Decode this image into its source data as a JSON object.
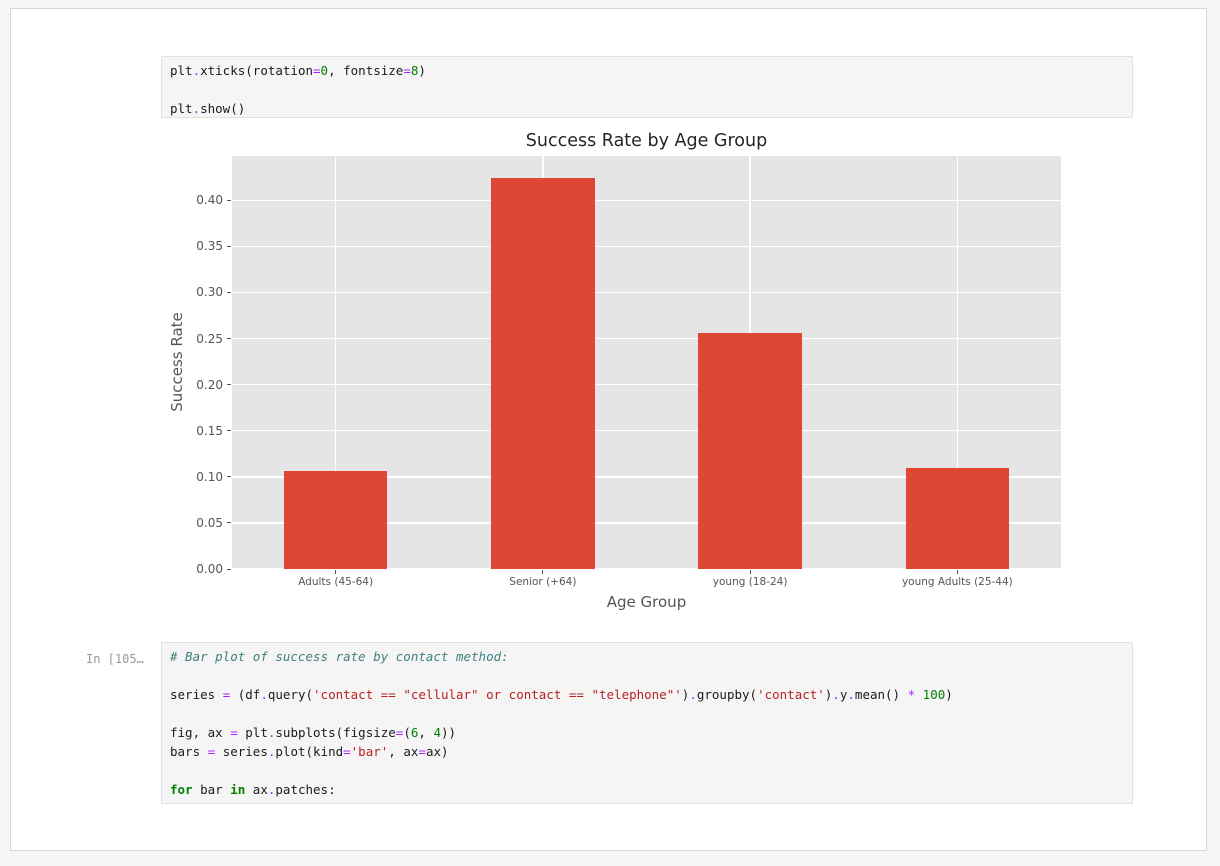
{
  "cells": [
    {
      "prompt": "",
      "lines": [
        {
          "tokens": [
            {
              "s": "plt",
              "c": "nm"
            },
            {
              "s": ".",
              "c": "op"
            },
            {
              "s": "xticks(rotation",
              "c": "nm"
            },
            {
              "s": "=",
              "c": "op"
            },
            {
              "s": "0",
              "c": "num"
            },
            {
              "s": ", fontsize",
              "c": "nm"
            },
            {
              "s": "=",
              "c": "op"
            },
            {
              "s": "8",
              "c": "num"
            },
            {
              "s": ")",
              "c": "nm"
            }
          ]
        },
        {
          "tokens": []
        },
        {
          "tokens": [
            {
              "s": "plt",
              "c": "nm"
            },
            {
              "s": ".",
              "c": "op"
            },
            {
              "s": "show()",
              "c": "nm"
            }
          ]
        }
      ]
    },
    {
      "prompt": "In [105…",
      "lines": [
        {
          "tokens": [
            {
              "s": "# Bar plot of success rate by contact method:",
              "c": "com"
            }
          ]
        },
        {
          "tokens": []
        },
        {
          "tokens": [
            {
              "s": "series ",
              "c": "nm"
            },
            {
              "s": "=",
              "c": "op"
            },
            {
              "s": " (df",
              "c": "nm"
            },
            {
              "s": ".",
              "c": "op"
            },
            {
              "s": "query(",
              "c": "nm"
            },
            {
              "s": "'contact == \"cellular\" or contact == \"telephone\"'",
              "c": "str"
            },
            {
              "s": ")",
              "c": "nm"
            },
            {
              "s": ".",
              "c": "op"
            },
            {
              "s": "groupby(",
              "c": "nm"
            },
            {
              "s": "'contact'",
              "c": "str"
            },
            {
              "s": ")",
              "c": "nm"
            },
            {
              "s": ".",
              "c": "op"
            },
            {
              "s": "y",
              "c": "nm"
            },
            {
              "s": ".",
              "c": "op"
            },
            {
              "s": "mean() ",
              "c": "nm"
            },
            {
              "s": "*",
              "c": "op"
            },
            {
              "s": " ",
              "c": "nm"
            },
            {
              "s": "100",
              "c": "num"
            },
            {
              "s": ")",
              "c": "nm"
            }
          ]
        },
        {
          "tokens": []
        },
        {
          "tokens": [
            {
              "s": "fig, ax ",
              "c": "nm"
            },
            {
              "s": "=",
              "c": "op"
            },
            {
              "s": " plt",
              "c": "nm"
            },
            {
              "s": ".",
              "c": "op"
            },
            {
              "s": "subplots(figsize",
              "c": "nm"
            },
            {
              "s": "=",
              "c": "op"
            },
            {
              "s": "(",
              "c": "nm"
            },
            {
              "s": "6",
              "c": "num"
            },
            {
              "s": ", ",
              "c": "nm"
            },
            {
              "s": "4",
              "c": "num"
            },
            {
              "s": "))",
              "c": "nm"
            }
          ]
        },
        {
          "tokens": [
            {
              "s": "bars ",
              "c": "nm"
            },
            {
              "s": "=",
              "c": "op"
            },
            {
              "s": " series",
              "c": "nm"
            },
            {
              "s": ".",
              "c": "op"
            },
            {
              "s": "plot(kind",
              "c": "nm"
            },
            {
              "s": "=",
              "c": "op"
            },
            {
              "s": "'bar'",
              "c": "str"
            },
            {
              "s": ", ax",
              "c": "nm"
            },
            {
              "s": "=",
              "c": "op"
            },
            {
              "s": "ax)",
              "c": "nm"
            }
          ]
        },
        {
          "tokens": []
        },
        {
          "tokens": [
            {
              "s": "for",
              "c": "kw"
            },
            {
              "s": " bar ",
              "c": "nm"
            },
            {
              "s": "in",
              "c": "kw"
            },
            {
              "s": " ax",
              "c": "nm"
            },
            {
              "s": ".",
              "c": "op"
            },
            {
              "s": "patches:",
              "c": "nm"
            }
          ]
        }
      ]
    }
  ],
  "chart_data": {
    "type": "bar",
    "title": "Success Rate by Age Group",
    "xlabel": "Age Group",
    "ylabel": "Success Rate",
    "categories": [
      "Adults (45-64)",
      "Senior (+64)",
      "young (18-24)",
      "young Adults (25-44)"
    ],
    "values": [
      0.106,
      0.424,
      0.256,
      0.11
    ],
    "yticks": [
      0,
      0.05,
      0.1,
      0.15,
      0.2,
      0.25,
      0.3,
      0.35,
      0.4
    ],
    "ylim": [
      0,
      0.448
    ],
    "grid": true,
    "legend_position": "none",
    "bar_color": "#dd4733",
    "plot_bg": "#e5e5e5",
    "grid_color": "#ffffff",
    "bar_width_frac": 0.5
  }
}
